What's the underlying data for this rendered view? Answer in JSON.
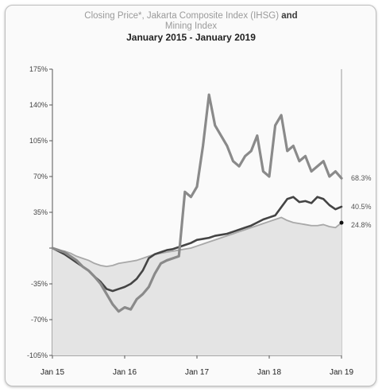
{
  "chart_data": {
    "type": "line",
    "title_part1": "Closing Price*, Jakarta Composite Index (IHSG)",
    "title_and": "and",
    "title_part2": "Mining Index",
    "subtitle": "January 2015 - January 2019",
    "xlabel": "",
    "ylabel": "",
    "x_start": "2015-01",
    "x_end": "2019-01",
    "x_ticks": [
      "Jan 15",
      "Jan 16",
      "Jan 17",
      "Jan 18",
      "Jan 19"
    ],
    "x_tick_values": [
      0,
      12,
      24,
      36,
      48
    ],
    "y_ticks": [
      "175%",
      "140%",
      "105%",
      "70%",
      "35%",
      "",
      "-35%",
      "-70%",
      "-105%"
    ],
    "y_tick_values": [
      175,
      140,
      105,
      70,
      35,
      0,
      -35,
      -70,
      -105
    ],
    "ylim": [
      -105,
      175
    ],
    "grid": false,
    "colors": {
      "series_a": "#8a8a8a",
      "series_b": "#444444",
      "series_c": "#a8a8a8",
      "area_fill": "#e4e4e4",
      "end_marker": "#111111"
    },
    "series": [
      {
        "values": [
          0,
          -2,
          -4,
          -8,
          -12,
          -18,
          -22,
          -28,
          -35,
          -45,
          -55,
          -62,
          -58,
          -60,
          -50,
          -45,
          -38,
          -25,
          -15,
          -12,
          -10,
          -8,
          55,
          50,
          60,
          100,
          150,
          120,
          110,
          100,
          85,
          80,
          90,
          95,
          110,
          75,
          70,
          120,
          130,
          95,
          100,
          85,
          90,
          75,
          80,
          85,
          70,
          75,
          68.3
        ],
        "end_label": "68.3%"
      },
      {
        "values": [
          0,
          -3,
          -6,
          -10,
          -14,
          -18,
          -22,
          -28,
          -33,
          -40,
          -42,
          -40,
          -38,
          -35,
          -30,
          -22,
          -10,
          -6,
          -4,
          -2,
          -1,
          1,
          3,
          5,
          8,
          9,
          10,
          12,
          13,
          14,
          16,
          18,
          20,
          22,
          25,
          28,
          30,
          32,
          40,
          48,
          50,
          45,
          46,
          44,
          50,
          48,
          42,
          38,
          40.5
        ],
        "end_label": "40.5%"
      },
      {
        "values": [
          0,
          -2,
          -3,
          -5,
          -8,
          -10,
          -12,
          -15,
          -17,
          -18,
          -17,
          -15,
          -14,
          -13,
          -12,
          -10,
          -8,
          -6,
          -5,
          -4,
          -3,
          -2,
          -1,
          0,
          2,
          4,
          6,
          8,
          10,
          12,
          14,
          16,
          18,
          20,
          22,
          24,
          26,
          28,
          30,
          27,
          25,
          24,
          23,
          22,
          22,
          23,
          21,
          20,
          24.8
        ],
        "end_label": "24.8%"
      }
    ]
  }
}
